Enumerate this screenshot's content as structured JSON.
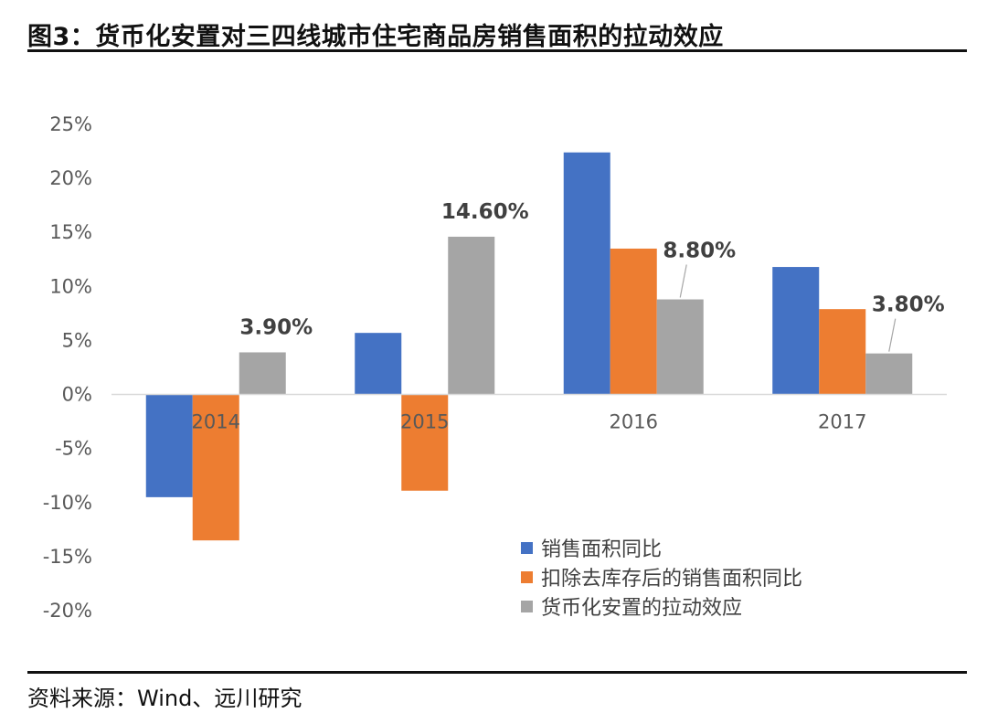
{
  "figure": {
    "title": "图3：货币化安置对三四线城市住宅商品房销售面积的拉动效应",
    "source": "资料来源：Wind、远川研究"
  },
  "chart_data": {
    "type": "bar",
    "categories": [
      "2014",
      "2015",
      "2016",
      "2017"
    ],
    "series": [
      {
        "name": "销售面积同比",
        "color": "#4472C4",
        "values": [
          -9.5,
          5.7,
          22.4,
          11.8
        ]
      },
      {
        "name": "扣除去库存后的销售面积同比",
        "color": "#ED7D31",
        "values": [
          -13.5,
          -8.9,
          13.5,
          7.9
        ]
      },
      {
        "name": "货币化安置的拉动效应",
        "color": "#A5A5A5",
        "values": [
          3.9,
          14.6,
          8.8,
          3.8
        ],
        "data_labels": [
          "3.90%",
          "14.60%",
          "8.80%",
          "3.80%"
        ]
      }
    ],
    "yticks": [
      "25%",
      "20%",
      "15%",
      "10%",
      "5%",
      "0%",
      "-5%",
      "-10%",
      "-15%",
      "-20%"
    ],
    "ylim": [
      -20,
      25
    ],
    "grid": false,
    "legend": "bottom-right"
  }
}
